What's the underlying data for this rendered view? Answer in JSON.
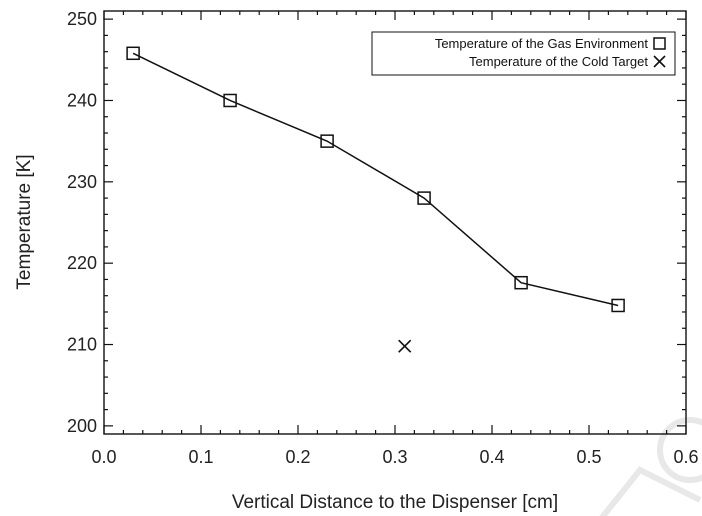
{
  "chart_data": {
    "type": "line",
    "xlabel": "Vertical Distance to the Dispenser [cm]",
    "ylabel": "Temperature [K]",
    "xlim": [
      0.0,
      0.6
    ],
    "ylim": [
      199,
      251
    ],
    "x_ticks": [
      "0.0",
      "0.1",
      "0.2",
      "0.3",
      "0.4",
      "0.5",
      "0.6"
    ],
    "y_ticks": [
      "200",
      "210",
      "220",
      "230",
      "240",
      "250"
    ],
    "x_tick_values": [
      0.0,
      0.1,
      0.2,
      0.3,
      0.4,
      0.5,
      0.6
    ],
    "y_tick_values": [
      200,
      210,
      220,
      230,
      240,
      250
    ],
    "grid": false,
    "legend_position": "top-right",
    "series": [
      {
        "name": "Temperature of the Gas Environment",
        "marker": "square",
        "line": true,
        "x": [
          0.03,
          0.13,
          0.23,
          0.33,
          0.43,
          0.53
        ],
        "y": [
          245.8,
          240.0,
          235.0,
          228.0,
          217.6,
          214.8
        ]
      },
      {
        "name": "Temperature of the Cold Target",
        "marker": "x",
        "line": false,
        "x": [
          0.31
        ],
        "y": [
          209.8
        ]
      }
    ]
  }
}
